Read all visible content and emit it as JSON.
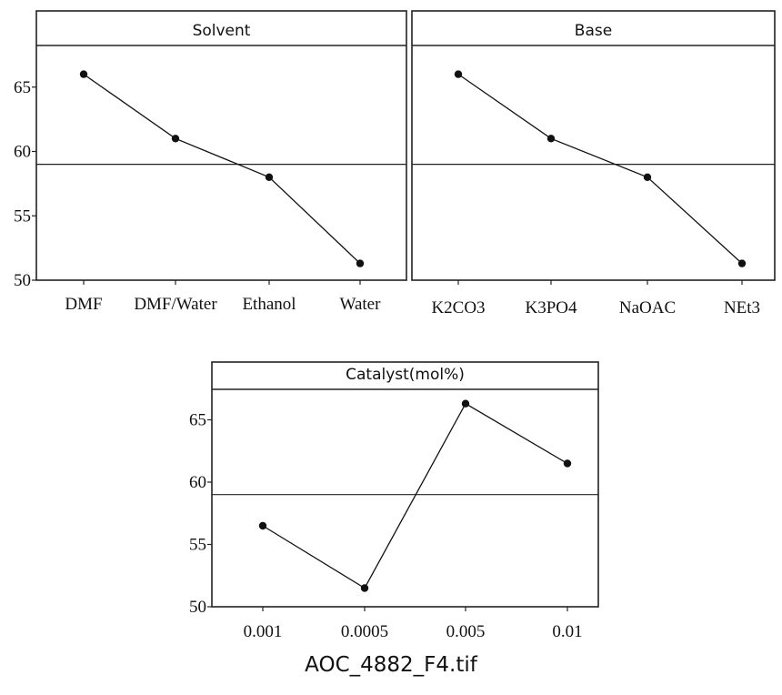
{
  "chart_data": [
    {
      "type": "line",
      "title": "Solvent",
      "categories": [
        "DMF",
        "DMF/Water",
        "Ethanol",
        "Water"
      ],
      "values": [
        66.0,
        61.0,
        58.0,
        51.3
      ],
      "reference_line": 59.0,
      "ylim": [
        50,
        68
      ],
      "yticks": [
        50,
        55,
        60,
        65
      ],
      "ytick_labels": [
        "50",
        "55",
        "60",
        "65"
      ],
      "show_y_axis": true
    },
    {
      "type": "line",
      "title": "Base",
      "categories": [
        "K2CO3",
        "K3PO4",
        "NaOAC",
        "NEt3"
      ],
      "values": [
        66.0,
        61.0,
        58.0,
        51.3
      ],
      "reference_line": 59.0,
      "ylim": [
        50,
        68
      ],
      "yticks": [],
      "ytick_labels": [],
      "show_y_axis": false
    },
    {
      "type": "line",
      "title": "Catalyst(mol%)",
      "categories": [
        "0.001",
        "0.0005",
        "0.005",
        "0.01"
      ],
      "values": [
        56.5,
        51.5,
        66.3,
        61.5
      ],
      "reference_line": 59.0,
      "ylim": [
        50,
        68
      ],
      "yticks": [
        50,
        55,
        60,
        65
      ],
      "ytick_labels": [
        "50",
        "55",
        "60",
        "65"
      ],
      "show_y_axis": true
    }
  ],
  "caption": "AOC_4882_F4.tif",
  "colors": {
    "line": "#111111",
    "frame": "#222222",
    "background": "#ffffff"
  }
}
